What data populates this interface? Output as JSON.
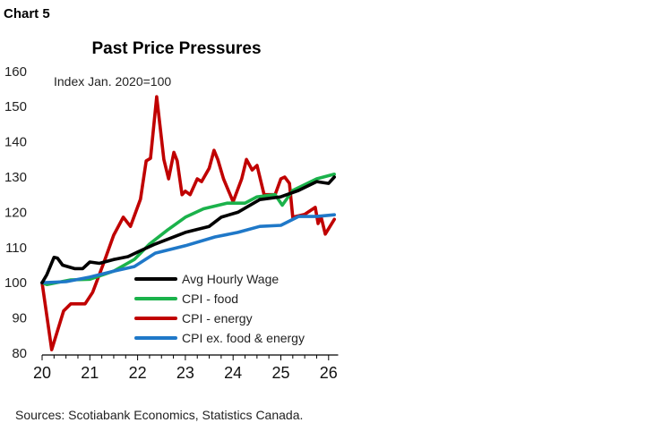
{
  "label": "Chart 5",
  "source": "Sources: Scotiabank Economics, Statistics Canada.",
  "chart_data": {
    "type": "line",
    "title": "Past Price Pressures",
    "ylabel": "Index Jan. 2020=100",
    "xlabel": "",
    "ylim": [
      80,
      160
    ],
    "yticks": [
      80,
      90,
      100,
      110,
      120,
      130,
      140,
      150,
      160
    ],
    "xlim": [
      20,
      26.2
    ],
    "xticks": [
      20,
      21,
      22,
      23,
      24,
      25,
      26
    ],
    "grid": false,
    "legend": "bottom-right",
    "series": [
      {
        "name": "Avg Hourly Wage",
        "color": "#000000",
        "x": [
          20.0,
          20.1,
          20.25,
          20.32,
          20.43,
          20.68,
          20.85,
          21.0,
          21.2,
          21.5,
          21.8,
          22.0,
          22.37,
          23.0,
          23.5,
          23.75,
          24.1,
          24.56,
          25.0,
          25.37,
          25.75,
          26.0,
          26.12
        ],
        "y": [
          100,
          102.3,
          107.2,
          107,
          105,
          104,
          104,
          105.9,
          105.5,
          106.6,
          107.4,
          108.7,
          111,
          114.3,
          116,
          118.6,
          120,
          123.6,
          124.4,
          126.2,
          128.7,
          128.2,
          130
        ]
      },
      {
        "name": "CPI - food",
        "color": "#1bb24b",
        "x": [
          20.0,
          20.1,
          20.6,
          21.0,
          21.5,
          21.93,
          22.25,
          22.63,
          23.0,
          23.38,
          23.87,
          24.25,
          24.5,
          24.88,
          25.03,
          25.25,
          25.75,
          26.12
        ],
        "y": [
          100,
          99.5,
          100.8,
          101,
          103.3,
          106.6,
          111,
          115,
          118.6,
          121,
          122.6,
          122.6,
          124.4,
          125,
          122,
          126.2,
          129.5,
          130.8
        ]
      },
      {
        "name": "CPI - energy",
        "color": "#c00000",
        "x": [
          20.0,
          20.2,
          20.45,
          20.6,
          20.9,
          21.06,
          21.3,
          21.5,
          21.7,
          21.85,
          22.06,
          22.18,
          22.27,
          22.4,
          22.55,
          22.65,
          22.76,
          22.83,
          22.93,
          23.0,
          23.1,
          23.25,
          23.34,
          23.5,
          23.6,
          23.68,
          23.8,
          24.0,
          24.18,
          24.28,
          24.4,
          24.5,
          24.65,
          24.88,
          25.0,
          25.08,
          25.18,
          25.25,
          25.5,
          25.72,
          25.78,
          25.84,
          25.93,
          26.12
        ],
        "y": [
          100,
          81,
          92,
          94,
          94,
          97.3,
          106,
          113.5,
          118.6,
          116,
          123.7,
          134.6,
          135.3,
          152.8,
          135,
          129.5,
          137,
          134.6,
          125,
          126,
          125,
          129.5,
          128.7,
          132.5,
          137.6,
          135,
          129.5,
          123,
          129.5,
          135,
          132,
          133.3,
          125,
          125,
          129.5,
          130,
          128.2,
          118.6,
          119.4,
          121.4,
          116.8,
          118.8,
          113.8,
          118
        ]
      },
      {
        "name": "CPI ex. food & energy",
        "color": "#1f78c8",
        "x": [
          20.0,
          20.5,
          21.0,
          21.5,
          21.93,
          22.37,
          23.0,
          23.62,
          24.1,
          24.56,
          25.0,
          25.37,
          25.75,
          26.12
        ],
        "y": [
          100,
          100.3,
          101.6,
          103.3,
          104.6,
          108.4,
          110.5,
          113,
          114.3,
          116,
          116.3,
          118.8,
          118.8,
          119.3
        ]
      }
    ]
  }
}
